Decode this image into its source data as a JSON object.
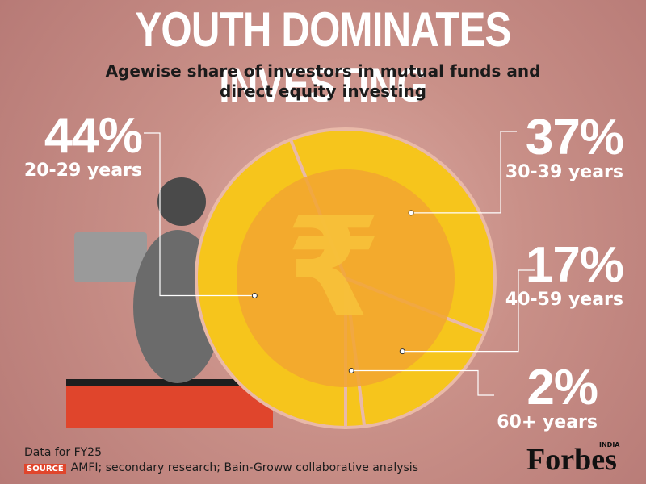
{
  "chart_data": {
    "type": "pie",
    "title": "YOUTH DOMINATES INVESTING",
    "subtitle": "Agewise share of investors in mutual funds and direct equity investing",
    "categories": [
      "20-29 years",
      "30-39 years",
      "40-59 years",
      "60+ years"
    ],
    "values": [
      44,
      37,
      17,
      2
    ],
    "value_labels": [
      "44%",
      "37%",
      "17%",
      "2%"
    ],
    "color": "#f6c51c",
    "note": "Data for FY25",
    "source_label": "SOURCE",
    "source": "AMFI; secondary research; Bain-Groww collaborative analysis",
    "brand": "Forbes",
    "brand_sub": "INDIA"
  }
}
